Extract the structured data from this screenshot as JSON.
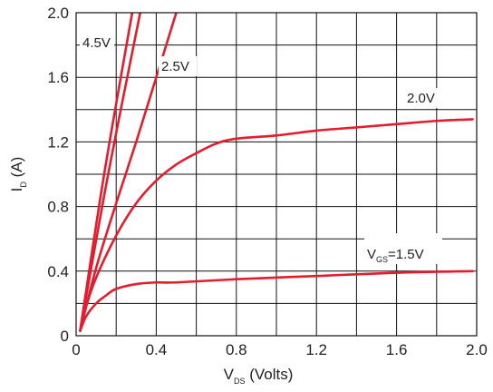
{
  "chart_data": {
    "type": "line",
    "xlabel": {
      "main": "V",
      "sub": "DS",
      "rest": " (Volts)"
    },
    "ylabel": {
      "main": "I",
      "sub": "D",
      "rest": " (A)"
    },
    "xlim": [
      0,
      2.0
    ],
    "ylim": [
      0,
      2.0
    ],
    "x_ticks": [
      "0",
      "0.4",
      "0.8",
      "1.2",
      "1.6",
      "2.0"
    ],
    "y_ticks": [
      "0",
      "0.4",
      "0.8",
      "1.2",
      "1.6",
      "2.0"
    ],
    "grid": true,
    "series": [
      {
        "name": "4.5V",
        "x": [
          0.02,
          0.14,
          0.28
        ],
        "y": [
          0.03,
          1.0,
          2.0
        ]
      },
      {
        "name": "",
        "x": [
          0.02,
          0.16,
          0.32
        ],
        "y": [
          0.03,
          1.0,
          2.0
        ]
      },
      {
        "name": "2.5V",
        "x": [
          0.02,
          0.1,
          0.2,
          0.3,
          0.4,
          0.5
        ],
        "y": [
          0.03,
          0.42,
          0.82,
          1.2,
          1.6,
          2.0
        ]
      },
      {
        "name": "2.0V",
        "x": [
          0.02,
          0.05,
          0.1,
          0.2,
          0.3,
          0.4,
          0.5,
          0.6,
          0.7,
          0.8,
          1.0,
          1.2,
          1.4,
          1.6,
          1.8,
          1.98
        ],
        "y": [
          0.03,
          0.18,
          0.36,
          0.62,
          0.82,
          0.96,
          1.06,
          1.13,
          1.19,
          1.22,
          1.24,
          1.27,
          1.29,
          1.31,
          1.33,
          1.34
        ]
      },
      {
        "name": "1.5V",
        "x": [
          0.02,
          0.05,
          0.1,
          0.15,
          0.2,
          0.3,
          0.4,
          0.5,
          0.8,
          1.2,
          1.6,
          1.98
        ],
        "y": [
          0.03,
          0.12,
          0.2,
          0.25,
          0.29,
          0.32,
          0.33,
          0.33,
          0.35,
          0.37,
          0.39,
          0.4
        ]
      }
    ],
    "labels": [
      {
        "series_index": 0,
        "text": "4.5V"
      },
      {
        "series_index": 2,
        "text": "2.5V"
      },
      {
        "series_index": 3,
        "text": "2.0V"
      },
      {
        "series_index": 4,
        "text": {
          "main": "V",
          "sub": "GS",
          "rest": "=1.5V"
        }
      }
    ],
    "colors": {
      "curve": "#e11d2e",
      "grid": "#111111",
      "text": "#222222"
    }
  }
}
